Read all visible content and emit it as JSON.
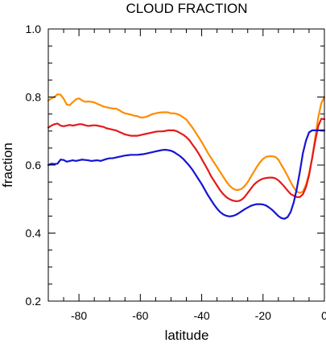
{
  "chart_data": {
    "type": "line",
    "title": "CLOUD FRACTION",
    "xlabel": "latitude",
    "ylabel": "fraction",
    "xlim": [
      -90,
      0
    ],
    "ylim": [
      0.2,
      1.0
    ],
    "xticks": [
      -80,
      -60,
      -40,
      -20,
      0
    ],
    "yticks": [
      0.2,
      0.4,
      0.6,
      0.8,
      1.0
    ],
    "xtick_labels": [
      "-80",
      "-60",
      "-40",
      "-20",
      "0"
    ],
    "ytick_labels": [
      "0.2",
      "0.4",
      "0.6",
      "0.8",
      "1.0"
    ],
    "grid": false,
    "legend": "none",
    "series": [
      {
        "color": "#ff8c00",
        "x": [
          -90,
          -89,
          -88,
          -87,
          -86,
          -85,
          -84,
          -83,
          -82,
          -81,
          -80,
          -79,
          -78,
          -77,
          -76,
          -75,
          -74,
          -73,
          -72,
          -71,
          -70,
          -69,
          -68,
          -67,
          -66,
          -65,
          -64,
          -63,
          -62,
          -61,
          -60,
          -59,
          -58,
          -57,
          -56,
          -55,
          -54,
          -53,
          -52,
          -51,
          -50,
          -49,
          -48,
          -47,
          -46,
          -45,
          -44,
          -43,
          -42,
          -41,
          -40,
          -39,
          -38,
          -37,
          -36,
          -35,
          -34,
          -33,
          -32,
          -31,
          -30,
          -29,
          -28,
          -27,
          -26,
          -25,
          -24,
          -23,
          -22,
          -21,
          -20,
          -19,
          -18,
          -17,
          -16,
          -15,
          -14,
          -13,
          -12,
          -11,
          -10,
          -9,
          -8,
          -7,
          -6,
          -5,
          -4,
          -3,
          -2,
          -1,
          0
        ],
        "values": [
          0.79,
          0.796,
          0.8,
          0.808,
          0.807,
          0.795,
          0.778,
          0.776,
          0.785,
          0.793,
          0.796,
          0.79,
          0.786,
          0.787,
          0.786,
          0.784,
          0.78,
          0.776,
          0.772,
          0.77,
          0.768,
          0.766,
          0.766,
          0.762,
          0.756,
          0.752,
          0.75,
          0.748,
          0.745,
          0.744,
          0.74,
          0.74,
          0.742,
          0.746,
          0.75,
          0.752,
          0.754,
          0.755,
          0.755,
          0.755,
          0.752,
          0.752,
          0.75,
          0.746,
          0.74,
          0.734,
          0.722,
          0.71,
          0.696,
          0.682,
          0.668,
          0.652,
          0.636,
          0.622,
          0.608,
          0.594,
          0.58,
          0.566,
          0.552,
          0.54,
          0.532,
          0.527,
          0.527,
          0.53,
          0.538,
          0.55,
          0.565,
          0.58,
          0.595,
          0.608,
          0.618,
          0.624,
          0.626,
          0.626,
          0.624,
          0.616,
          0.6,
          0.585,
          0.568,
          0.55,
          0.534,
          0.522,
          0.518,
          0.522,
          0.542,
          0.575,
          0.62,
          0.68,
          0.74,
          0.782,
          0.8
        ]
      },
      {
        "color": "#e41a1c",
        "x": [
          -90,
          -89,
          -88,
          -87,
          -86,
          -85,
          -84,
          -83,
          -82,
          -81,
          -80,
          -79,
          -78,
          -77,
          -76,
          -75,
          -74,
          -73,
          -72,
          -71,
          -70,
          -69,
          -68,
          -67,
          -66,
          -65,
          -64,
          -63,
          -62,
          -61,
          -60,
          -59,
          -58,
          -57,
          -56,
          -55,
          -54,
          -53,
          -52,
          -51,
          -50,
          -49,
          -48,
          -47,
          -46,
          -45,
          -44,
          -43,
          -42,
          -41,
          -40,
          -39,
          -38,
          -37,
          -36,
          -35,
          -34,
          -33,
          -32,
          -31,
          -30,
          -29,
          -28,
          -27,
          -26,
          -25,
          -24,
          -23,
          -22,
          -21,
          -20,
          -19,
          -18,
          -17,
          -16,
          -15,
          -14,
          -13,
          -12,
          -11,
          -10,
          -9,
          -8,
          -7,
          -6,
          -5,
          -4,
          -3,
          -2,
          -1,
          0
        ],
        "values": [
          0.71,
          0.716,
          0.72,
          0.722,
          0.716,
          0.714,
          0.716,
          0.718,
          0.716,
          0.718,
          0.72,
          0.72,
          0.717,
          0.715,
          0.716,
          0.717,
          0.716,
          0.714,
          0.712,
          0.708,
          0.706,
          0.704,
          0.702,
          0.698,
          0.694,
          0.69,
          0.688,
          0.686,
          0.686,
          0.686,
          0.688,
          0.69,
          0.692,
          0.694,
          0.696,
          0.698,
          0.699,
          0.699,
          0.7,
          0.702,
          0.702,
          0.702,
          0.699,
          0.694,
          0.689,
          0.682,
          0.673,
          0.66,
          0.648,
          0.634,
          0.618,
          0.602,
          0.586,
          0.568,
          0.554,
          0.54,
          0.526,
          0.515,
          0.506,
          0.5,
          0.496,
          0.494,
          0.494,
          0.498,
          0.506,
          0.518,
          0.53,
          0.542,
          0.55,
          0.556,
          0.56,
          0.562,
          0.563,
          0.563,
          0.561,
          0.555,
          0.546,
          0.536,
          0.525,
          0.515,
          0.51,
          0.506,
          0.506,
          0.514,
          0.535,
          0.57,
          0.62,
          0.67,
          0.715,
          0.736,
          0.735
        ]
      },
      {
        "color": "#1414d4",
        "x": [
          -90,
          -89,
          -88,
          -87,
          -86,
          -85,
          -84,
          -83,
          -82,
          -81,
          -80,
          -79,
          -78,
          -77,
          -76,
          -75,
          -74,
          -73,
          -72,
          -71,
          -70,
          -69,
          -68,
          -67,
          -66,
          -65,
          -64,
          -63,
          -62,
          -61,
          -60,
          -59,
          -58,
          -57,
          -56,
          -55,
          -54,
          -53,
          -52,
          -51,
          -50,
          -49,
          -48,
          -47,
          -46,
          -45,
          -44,
          -43,
          -42,
          -41,
          -40,
          -39,
          -38,
          -37,
          -36,
          -35,
          -34,
          -33,
          -32,
          -31,
          -30,
          -29,
          -28,
          -27,
          -26,
          -25,
          -24,
          -23,
          -22,
          -21,
          -20,
          -19,
          -18,
          -17,
          -16,
          -15,
          -14,
          -13,
          -12,
          -11,
          -10,
          -9,
          -8,
          -7,
          -6,
          -5,
          -4,
          -3,
          -2,
          -1,
          0
        ],
        "values": [
          0.6,
          0.604,
          0.603,
          0.604,
          0.616,
          0.615,
          0.61,
          0.612,
          0.614,
          0.612,
          0.614,
          0.616,
          0.615,
          0.614,
          0.612,
          0.613,
          0.614,
          0.612,
          0.615,
          0.618,
          0.62,
          0.62,
          0.622,
          0.624,
          0.626,
          0.628,
          0.629,
          0.63,
          0.63,
          0.63,
          0.631,
          0.632,
          0.634,
          0.636,
          0.638,
          0.64,
          0.642,
          0.644,
          0.645,
          0.644,
          0.642,
          0.638,
          0.632,
          0.626,
          0.618,
          0.608,
          0.598,
          0.586,
          0.572,
          0.558,
          0.544,
          0.528,
          0.512,
          0.498,
          0.484,
          0.472,
          0.462,
          0.455,
          0.451,
          0.449,
          0.45,
          0.453,
          0.458,
          0.464,
          0.47,
          0.475,
          0.48,
          0.483,
          0.485,
          0.485,
          0.484,
          0.481,
          0.475,
          0.468,
          0.459,
          0.45,
          0.444,
          0.442,
          0.447,
          0.462,
          0.49,
          0.53,
          0.58,
          0.635,
          0.672,
          0.696,
          0.702,
          0.702,
          0.702,
          0.702,
          0.702
        ]
      }
    ]
  }
}
